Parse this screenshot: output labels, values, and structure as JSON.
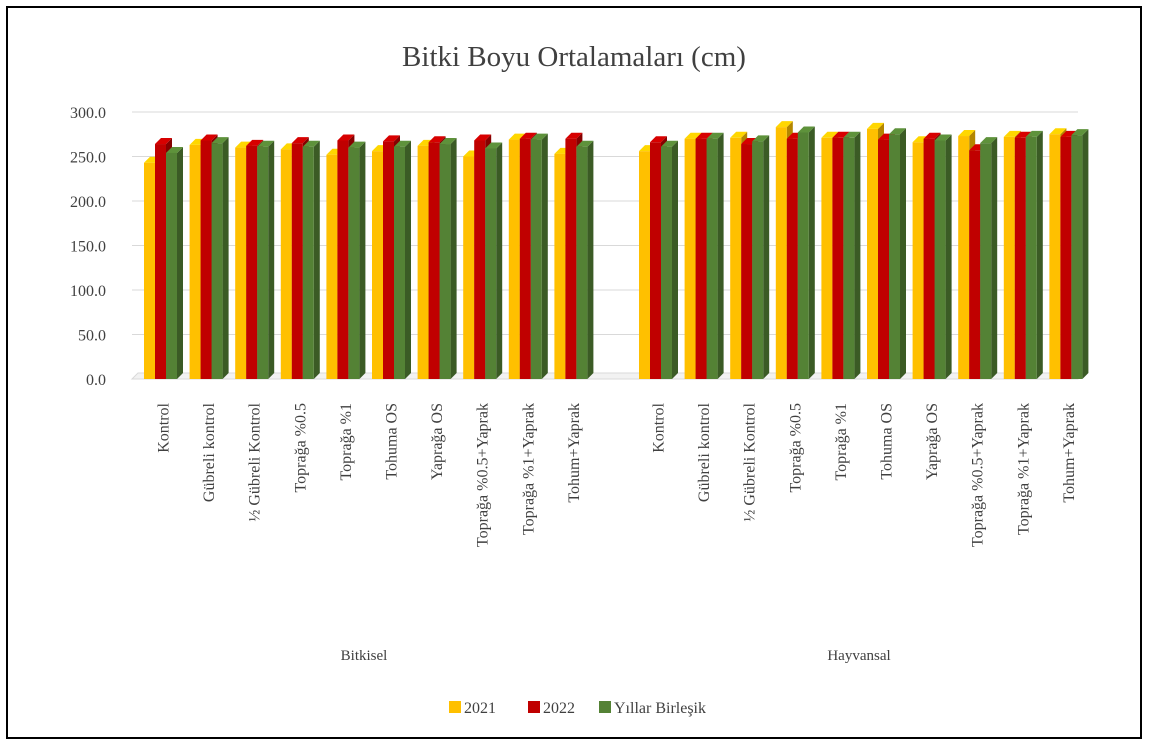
{
  "chart_data": {
    "type": "bar",
    "style": "3d-clustered-column",
    "title": "Bitki Boyu Ortalamaları (cm)",
    "xlabel": "",
    "ylabel": "",
    "ylim": [
      0,
      300
    ],
    "yticks": [
      "0.0",
      "50.0",
      "100.0",
      "150.0",
      "200.0",
      "250.0",
      "300.0"
    ],
    "grid": true,
    "legend_position": "bottom",
    "groups": [
      {
        "name": "Bitkisel",
        "categories": [
          "Kontrol",
          "Gübreli kontrol",
          "½ Gübreli Kontrol",
          "Toprağa %0.5",
          "Toprağa %1",
          "Tohuma OS",
          "Yaprağa OS",
          "Toprağa %0.5+Yaprak",
          "Toprağa %1+Yaprak",
          "Tohum+Yaprak"
        ]
      },
      {
        "name": "Hayvansal",
        "categories": [
          "Kontrol",
          "Gübreli kontrol",
          "½ Gübreli Kontrol",
          "Toprağa %0.5",
          "Toprağa %1",
          "Tohuma OS",
          "Yaprağa OS",
          "Toprağa %0.5+Yaprak",
          "Toprağa %1+Yaprak",
          "Tohum+Yaprak"
        ]
      }
    ],
    "series": [
      {
        "name": "2021",
        "color": "#FFC000",
        "values": [
          243,
          263,
          260,
          258,
          252,
          256,
          262,
          250,
          269,
          253,
          256,
          270,
          271,
          283,
          271,
          281,
          266,
          273,
          272,
          275
        ]
      },
      {
        "name": "2022",
        "color": "#C00000",
        "values": [
          264,
          268,
          262,
          265,
          268,
          267,
          266,
          268,
          270,
          270,
          266,
          270,
          264,
          270,
          271,
          269,
          270,
          257,
          271,
          272
        ]
      },
      {
        "name": "Yıllar Birleşik",
        "color": "#548235",
        "values": [
          254,
          265,
          261,
          261,
          260,
          261,
          264,
          259,
          269,
          261,
          261,
          270,
          267,
          277,
          271,
          275,
          268,
          265,
          272,
          274
        ]
      }
    ]
  }
}
